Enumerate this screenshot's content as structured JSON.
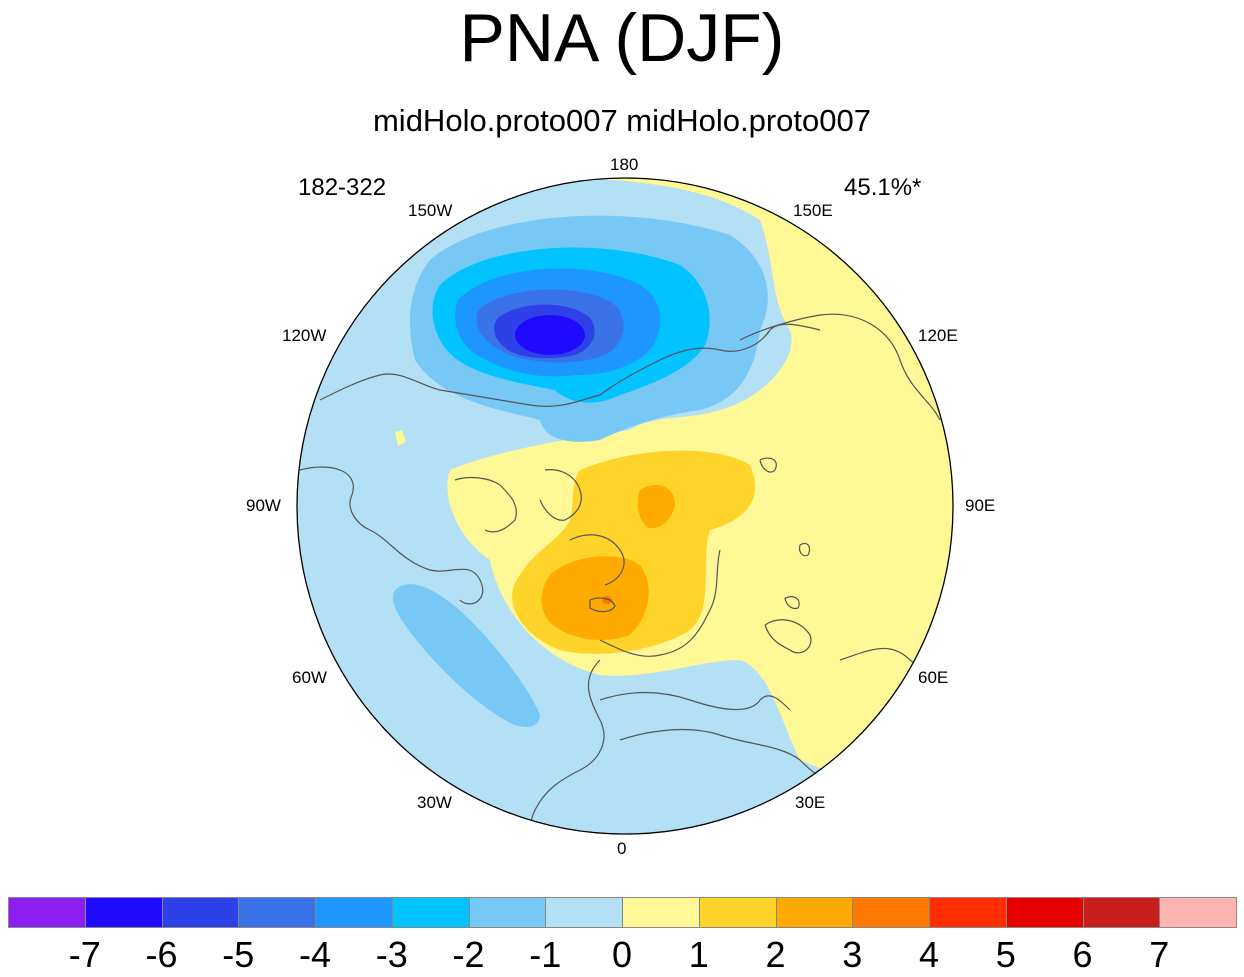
{
  "header": {
    "title": "PNA (DJF)",
    "subtitle": "midHolo.proto007  midHolo.proto007",
    "left_label": "182-322",
    "right_label": "45.1%*"
  },
  "map": {
    "projection": "north-polar-stereographic",
    "longitude_labels": {
      "top": "180",
      "bottom": "0",
      "w150": "150W",
      "e150": "150E",
      "w120": "120W",
      "e120": "120E",
      "w90": "90W",
      "e90": "90E",
      "w60": "60W",
      "e60": "60E",
      "w30": "30W",
      "e30": "30E"
    }
  },
  "colorbar": {
    "colors": [
      "#8c1ff0",
      "#1e0aff",
      "#2e41e8",
      "#3a73e8",
      "#1e96ff",
      "#00c3ff",
      "#78c8f5",
      "#b4e0f5",
      "#fff896",
      "#ffd42a",
      "#ffaa00",
      "#ff7800",
      "#ff2d00",
      "#e60000",
      "#c81e1e",
      "#ffb4b4"
    ],
    "ticks": [
      "-7",
      "-6",
      "-5",
      "-4",
      "-3",
      "-2",
      "-1",
      "0",
      "1",
      "2",
      "3",
      "4",
      "5",
      "6",
      "7"
    ]
  }
}
